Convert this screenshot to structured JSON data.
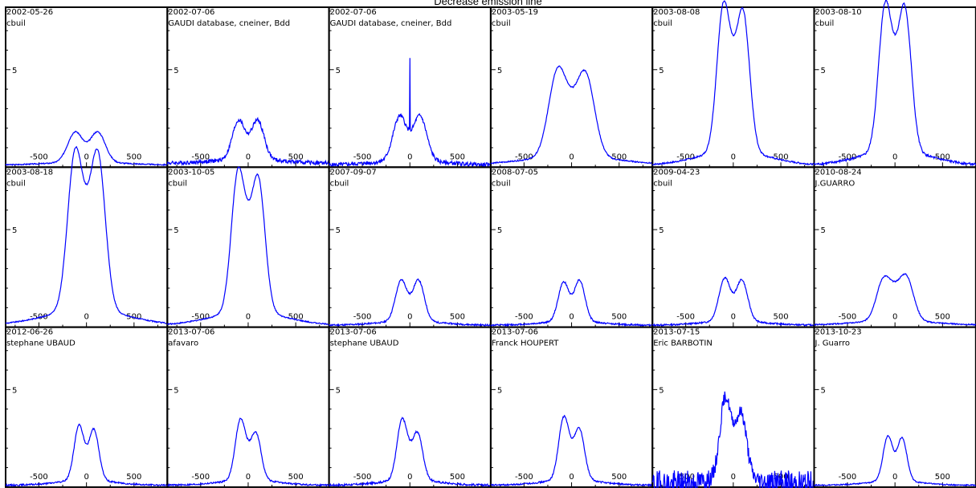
{
  "page": {
    "title": "Decrease emission line"
  },
  "style": {
    "line_color": "#0000ff",
    "frame_color": "#000000"
  },
  "chart_data": {
    "type": "line",
    "rows": 3,
    "cols": 6,
    "xlim": [
      -850,
      850
    ],
    "ylim": [
      0,
      8.2
    ],
    "xticks": [
      -500,
      0,
      500
    ],
    "yticks": [
      5
    ],
    "grid": false,
    "panels": [
      {
        "date": "2002-05-26",
        "observer": "cbuil",
        "profile": {
          "a1": 1.55,
          "a2": 1.55,
          "w": 190,
          "base": 0.1,
          "central": 0,
          "noise": 0.03
        }
      },
      {
        "date": "2002-07-06",
        "observer": "GAUDI database, cneiner, Bdd",
        "profile": {
          "a1": 2.0,
          "a2": 2.0,
          "w": 160,
          "base": 0.2,
          "central": 0,
          "noise": 0.1,
          "spike": 0
        }
      },
      {
        "date": "2002-07-06",
        "observer": "GAUDI database, cneiner, Bdd",
        "profile": {
          "a1": 2.3,
          "a2": 2.3,
          "w": 170,
          "base": 0.1,
          "central": 0,
          "noise": 0.1,
          "spike": 5.6
        }
      },
      {
        "date": "2003-05-19",
        "observer": "cbuil",
        "profile": {
          "a1": 4.5,
          "a2": 4.3,
          "w": 230,
          "base": 0.1,
          "central": 0.6,
          "noise": 0.03
        }
      },
      {
        "date": "2003-08-08",
        "observer": "cbuil",
        "profile": {
          "a1": 7.5,
          "a2": 7.1,
          "w": 165,
          "base": 0.1,
          "central": 1.0,
          "noise": 0.04
        }
      },
      {
        "date": "2003-08-10",
        "observer": "cbuil",
        "profile": {
          "a1": 7.5,
          "a2": 7.3,
          "w": 165,
          "base": 0.1,
          "central": 1.0,
          "noise": 0.06
        }
      },
      {
        "date": "2003-08-18",
        "observer": "cbuil",
        "profile": {
          "a1": 8.1,
          "a2": 8.0,
          "w": 190,
          "base": 0.1,
          "central": 1.0,
          "noise": 0.03
        }
      },
      {
        "date": "2003-10-05",
        "observer": "cbuil",
        "profile": {
          "a1": 7.2,
          "a2": 6.8,
          "w": 170,
          "base": 0.1,
          "central": 1.0,
          "noise": 0.03
        }
      },
      {
        "date": "2007-09-07",
        "observer": "cbuil",
        "profile": {
          "a1": 2.1,
          "a2": 2.1,
          "w": 145,
          "base": 0.1,
          "central": 0,
          "noise": 0.04
        }
      },
      {
        "date": "2008-07-05",
        "observer": "cbuil",
        "profile": {
          "a1": 2.0,
          "a2": 2.1,
          "w": 135,
          "base": 0.1,
          "central": 0,
          "noise": 0.04
        }
      },
      {
        "date": "2009-04-23",
        "observer": "cbuil",
        "profile": {
          "a1": 2.2,
          "a2": 2.1,
          "w": 145,
          "base": 0.1,
          "central": 0,
          "noise": 0.04
        }
      },
      {
        "date": "2010-08-24",
        "observer": "J.GUARRO",
        "profile": {
          "a1": 2.2,
          "a2": 2.3,
          "w": 185,
          "base": 0.1,
          "central": 0.5,
          "noise": 0.03
        }
      },
      {
        "date": "2012-06-26",
        "observer": "stephane UBAUD",
        "profile": {
          "a1": 2.8,
          "a2": 2.6,
          "w": 125,
          "base": 0.1,
          "central": 0,
          "noise": 0.04
        }
      },
      {
        "date": "2013-07-06",
        "observer": "afavaro",
        "profile": {
          "a1": 3.1,
          "a2": 2.4,
          "w": 130,
          "base": 0.1,
          "central": 0.2,
          "noise": 0.04
        }
      },
      {
        "date": "2013-07-06",
        "observer": "stephane UBAUD",
        "profile": {
          "a1": 3.1,
          "a2": 2.4,
          "w": 130,
          "base": 0.1,
          "central": 0.2,
          "noise": 0.05
        }
      },
      {
        "date": "2013-07-06",
        "observer": "Franck HOUPERT",
        "profile": {
          "a1": 3.2,
          "a2": 2.6,
          "w": 130,
          "base": 0.1,
          "central": 0.2,
          "noise": 0.04
        }
      },
      {
        "date": "2013-07-15",
        "observer": "Eric BARBOTIN",
        "profile": {
          "a1": 4.1,
          "a2": 3.3,
          "w": 135,
          "base": 0.1,
          "central": 0.4,
          "noise": 0.25
        }
      },
      {
        "date": "2013-10-23",
        "observer": "J. Guarro",
        "profile": {
          "a1": 2.3,
          "a2": 2.2,
          "w": 120,
          "base": 0.1,
          "central": 0,
          "noise": 0.03
        }
      }
    ]
  }
}
